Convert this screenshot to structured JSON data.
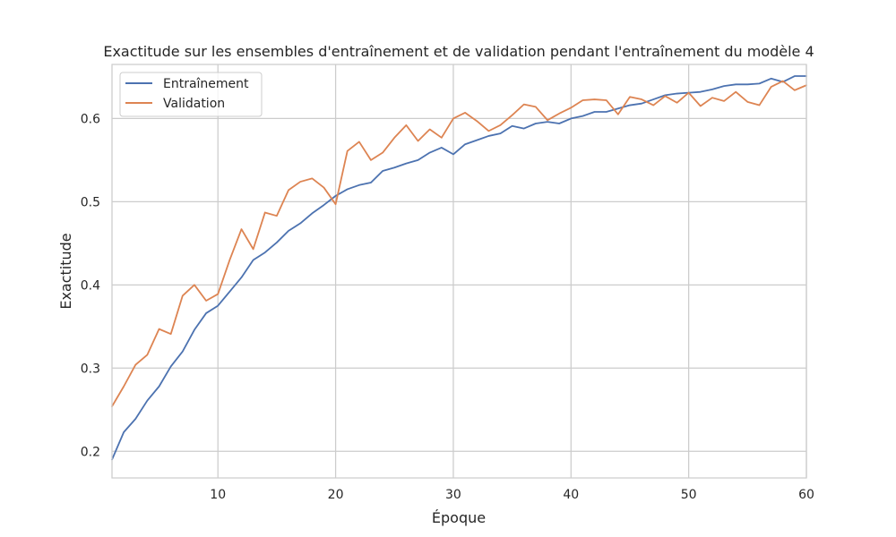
{
  "chart_data": {
    "type": "line",
    "title": "Exactitude sur les ensembles d'entraînement et de validation pendant l'entraînement du modèle 4",
    "xlabel": "Époque",
    "ylabel": "Exactitude",
    "xlim": [
      1,
      60
    ],
    "ylim": [
      0.168,
      0.665
    ],
    "xticks": [
      10,
      20,
      30,
      40,
      50,
      60
    ],
    "yticks": [
      0.2,
      0.3,
      0.4,
      0.5,
      0.6
    ],
    "grid": true,
    "legend_position": "top-left",
    "x": [
      1,
      2,
      3,
      4,
      5,
      6,
      7,
      8,
      9,
      10,
      11,
      12,
      13,
      14,
      15,
      16,
      17,
      18,
      19,
      20,
      21,
      22,
      23,
      24,
      25,
      26,
      27,
      28,
      29,
      30,
      31,
      32,
      33,
      34,
      35,
      36,
      37,
      38,
      39,
      40,
      41,
      42,
      43,
      44,
      45,
      46,
      47,
      48,
      49,
      50,
      51,
      52,
      53,
      54,
      55,
      56,
      57,
      58,
      59,
      60
    ],
    "series": [
      {
        "name": "Entraînement",
        "color": "#4c72b0",
        "values": [
          0.19,
          0.223,
          0.239,
          0.261,
          0.278,
          0.302,
          0.32,
          0.346,
          0.366,
          0.375,
          0.392,
          0.409,
          0.43,
          0.439,
          0.451,
          0.465,
          0.474,
          0.486,
          0.496,
          0.507,
          0.515,
          0.52,
          0.523,
          0.537,
          0.541,
          0.546,
          0.55,
          0.559,
          0.565,
          0.557,
          0.569,
          0.574,
          0.579,
          0.582,
          0.591,
          0.588,
          0.594,
          0.596,
          0.594,
          0.6,
          0.603,
          0.608,
          0.608,
          0.612,
          0.616,
          0.618,
          0.623,
          0.628,
          0.63,
          0.631,
          0.632,
          0.635,
          0.639,
          0.641,
          0.641,
          0.642,
          0.648,
          0.644,
          0.651,
          0.651
        ]
      },
      {
        "name": "Validation",
        "color": "#dd8452",
        "values": [
          0.254,
          0.278,
          0.304,
          0.316,
          0.347,
          0.341,
          0.387,
          0.4,
          0.381,
          0.389,
          0.43,
          0.467,
          0.443,
          0.487,
          0.483,
          0.514,
          0.524,
          0.528,
          0.517,
          0.497,
          0.561,
          0.572,
          0.55,
          0.559,
          0.577,
          0.592,
          0.573,
          0.587,
          0.577,
          0.6,
          0.607,
          0.597,
          0.585,
          0.592,
          0.604,
          0.617,
          0.614,
          0.598,
          0.606,
          0.613,
          0.622,
          0.623,
          0.622,
          0.605,
          0.626,
          0.623,
          0.616,
          0.627,
          0.619,
          0.631,
          0.615,
          0.625,
          0.621,
          0.632,
          0.62,
          0.616,
          0.638,
          0.645,
          0.634,
          0.64
        ]
      }
    ]
  }
}
